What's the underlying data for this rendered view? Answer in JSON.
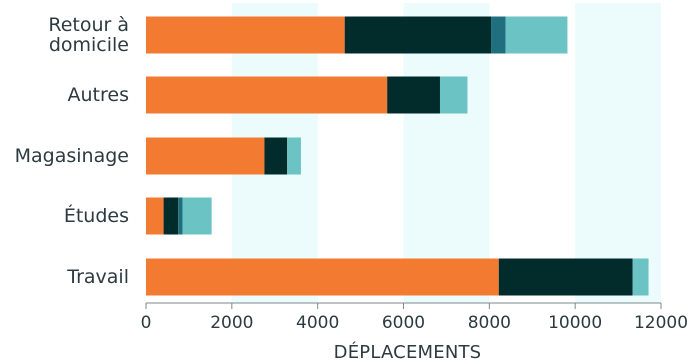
{
  "chart_data": {
    "type": "bar",
    "orientation": "horizontal",
    "stacked": true,
    "categories": [
      "Retour à domicile",
      "Autres",
      "Magasinage",
      "Études",
      "Travail"
    ],
    "category_lines": [
      [
        "Retour à",
        "domicile"
      ],
      [
        "Autres"
      ],
      [
        "Magasinage"
      ],
      [
        "Études"
      ],
      [
        "Travail"
      ]
    ],
    "series": [
      {
        "values": [
          4630,
          5620,
          2760,
          410,
          8220
        ],
        "color": "#f37b31"
      },
      {
        "values": [
          3410,
          1230,
          530,
          340,
          3120
        ],
        "color": "#022b2b"
      },
      {
        "values": [
          340,
          0,
          0,
          100,
          0
        ],
        "color": "#1f6f7f"
      },
      {
        "values": [
          1440,
          640,
          320,
          680,
          370
        ],
        "color": "#6cc3c3"
      }
    ],
    "xlabel": "DÉPLACEMENTS",
    "xlim": [
      0,
      12000
    ],
    "x_ticks": [
      0,
      2000,
      4000,
      6000,
      8000,
      10000,
      12000
    ],
    "x_tick_labels": [
      "0",
      "2000",
      "4000",
      "6000",
      "8000",
      "10000",
      "12000"
    ],
    "background_bands": {
      "color": "#ecfbfb",
      "ranges": [
        [
          2000,
          4000
        ],
        [
          6000,
          8000
        ],
        [
          10000,
          12000
        ]
      ]
    },
    "grid": false,
    "legend": "none"
  }
}
